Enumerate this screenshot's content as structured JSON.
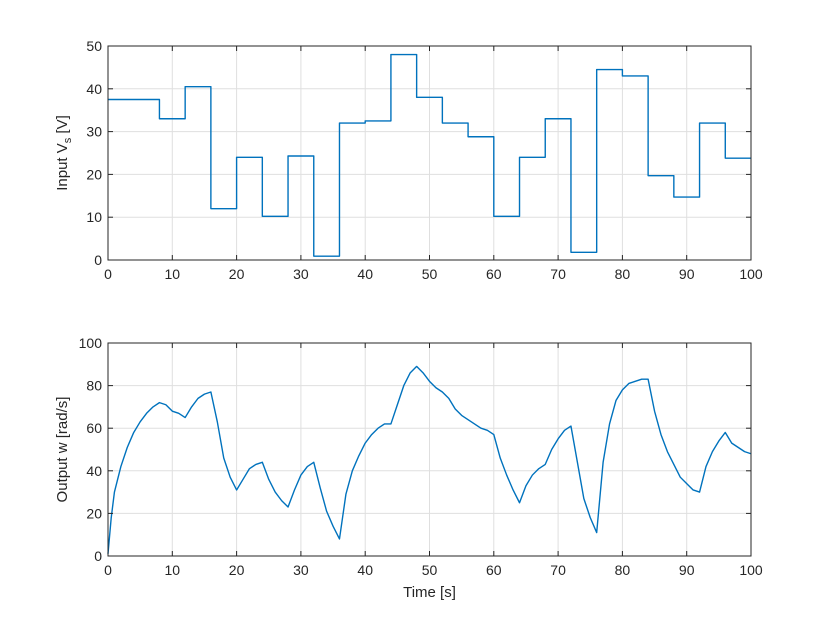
{
  "chart_data": [
    {
      "type": "line",
      "title": "",
      "xlabel": "",
      "ylabel": {
        "main": "Input V",
        "sub": "s",
        "unit": " [V]"
      },
      "xlim": [
        0,
        100
      ],
      "ylim": [
        0,
        50
      ],
      "xticks": [
        "0",
        "10",
        "20",
        "30",
        "40",
        "50",
        "60",
        "70",
        "80",
        "90",
        "100"
      ],
      "yticks": [
        "0",
        "10",
        "20",
        "30",
        "40",
        "50"
      ],
      "grid": true,
      "color": "#0072bd",
      "step": true,
      "series": [
        {
          "x": [
            0,
            8,
            12,
            16,
            20,
            24,
            28,
            32,
            36,
            40,
            44,
            48,
            52,
            56,
            60,
            64,
            68,
            72,
            76,
            80,
            84,
            88,
            92,
            96,
            100
          ],
          "values": [
            37.5,
            33,
            40.5,
            12,
            24,
            10.2,
            24.3,
            0.9,
            32,
            32.5,
            48,
            38,
            32,
            28.8,
            10.2,
            24,
            33,
            1.8,
            44.5,
            43,
            19.7,
            14.7,
            32,
            23.8,
            23.8
          ]
        }
      ]
    },
    {
      "type": "line",
      "title": "",
      "xlabel": "Time [s]",
      "ylabel": "Output w [rad/s]",
      "xlim": [
        0,
        100
      ],
      "ylim": [
        0,
        100
      ],
      "xticks": [
        "0",
        "10",
        "20",
        "30",
        "40",
        "50",
        "60",
        "70",
        "80",
        "90",
        "100"
      ],
      "yticks": [
        "0",
        "20",
        "40",
        "60",
        "80",
        "100"
      ],
      "grid": true,
      "color": "#0072bd",
      "series": [
        {
          "x": [
            0,
            0.5,
            1,
            2,
            3,
            4,
            5,
            6,
            7,
            8,
            9,
            10,
            11,
            12,
            13,
            14,
            15,
            16,
            17,
            18,
            19,
            20,
            21,
            22,
            23,
            24,
            25,
            26,
            27,
            28,
            29,
            30,
            31,
            32,
            33,
            34,
            35,
            36,
            37,
            38,
            39,
            40,
            41,
            42,
            43,
            44,
            45,
            46,
            47,
            48,
            49,
            50,
            51,
            52,
            53,
            54,
            55,
            56,
            57,
            58,
            59,
            60,
            61,
            62,
            63,
            64,
            65,
            66,
            67,
            68,
            69,
            70,
            71,
            72,
            73,
            74,
            75,
            76,
            77,
            78,
            79,
            80,
            81,
            82,
            83,
            84,
            85,
            86,
            87,
            88,
            89,
            90,
            91,
            92,
            93,
            94,
            95,
            96,
            97,
            98,
            99,
            100
          ],
          "values": [
            1,
            18,
            30,
            42,
            51,
            58,
            63,
            67,
            70,
            72,
            71,
            68,
            67,
            65,
            70,
            74,
            76,
            77,
            63,
            46,
            37,
            31,
            36,
            41,
            43,
            44,
            36,
            30,
            26,
            23,
            31,
            38,
            42,
            44,
            32,
            21,
            14,
            8,
            29,
            40,
            47,
            53,
            57,
            60,
            62,
            62,
            71,
            80,
            86,
            89,
            86,
            82,
            79,
            77,
            74,
            69,
            66,
            64,
            62,
            60,
            59,
            57,
            46,
            38,
            31,
            25,
            33,
            38,
            41,
            43,
            50,
            55,
            59,
            61,
            44,
            27,
            18,
            11,
            44,
            62,
            73,
            78,
            81,
            82,
            83,
            83,
            68,
            57,
            49,
            43,
            37,
            34,
            31,
            30,
            42,
            49,
            54,
            58,
            53,
            51,
            49,
            48
          ]
        }
      ]
    }
  ]
}
